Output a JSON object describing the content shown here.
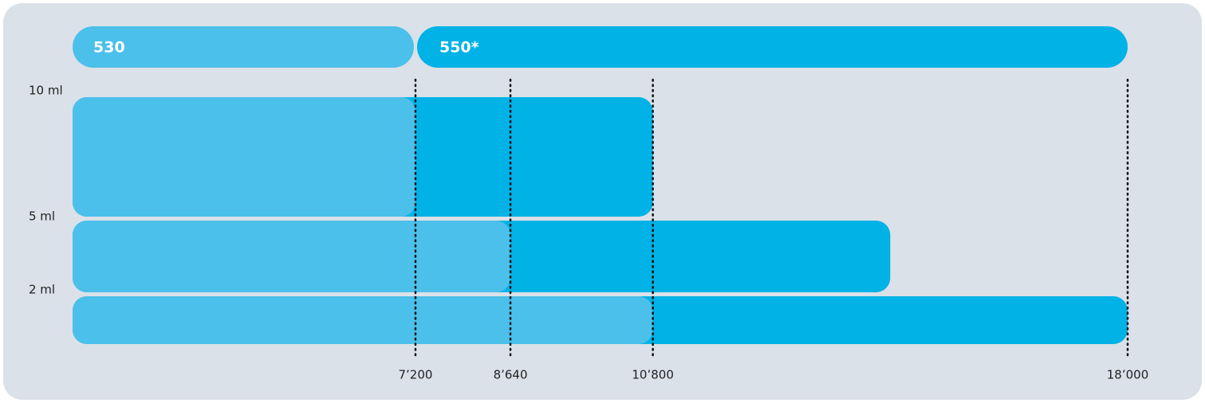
{
  "chart_data": {
    "type": "bar",
    "categories": [
      "10 ml",
      "5 ml",
      "2 ml"
    ],
    "series": [
      {
        "name": "530",
        "color": "#4bc0ea",
        "values": [
          7200,
          8640,
          10800
        ]
      },
      {
        "name": "550*",
        "color": "#00b2e6",
        "values": [
          10800,
          14400,
          18000
        ]
      }
    ],
    "xlim": [
      2000,
      18000
    ],
    "xticks": [
      {
        "value": 7200,
        "label": "7’200"
      },
      {
        "value": 8640,
        "label": "8’640"
      },
      {
        "value": 10800,
        "label": "10’800"
      },
      {
        "value": 18000,
        "label": "18’000"
      }
    ]
  }
}
